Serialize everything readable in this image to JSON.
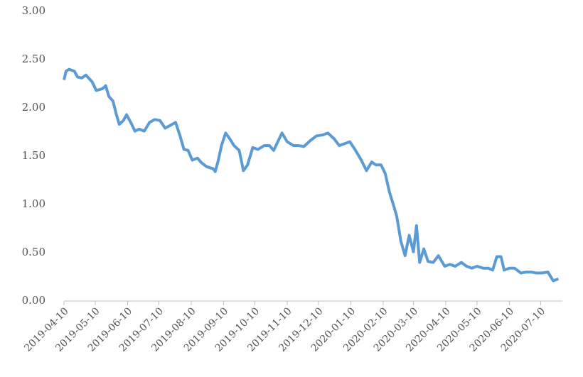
{
  "chart_data": {
    "type": "line",
    "x": [
      "2019-04-10",
      "2019-04-12",
      "2019-04-15",
      "2019-04-20",
      "2019-04-23",
      "2019-04-27",
      "2019-05-01",
      "2019-05-07",
      "2019-05-11",
      "2019-05-17",
      "2019-05-20",
      "2019-05-23",
      "2019-05-27",
      "2019-05-30",
      "2019-06-02",
      "2019-06-06",
      "2019-06-09",
      "2019-06-13",
      "2019-06-17",
      "2019-06-21",
      "2019-06-26",
      "2019-07-01",
      "2019-07-06",
      "2019-07-11",
      "2019-07-16",
      "2019-07-21",
      "2019-07-26",
      "2019-07-30",
      "2019-08-03",
      "2019-08-07",
      "2019-08-11",
      "2019-08-16",
      "2019-08-20",
      "2019-08-25",
      "2019-08-31",
      "2019-09-02",
      "2019-09-05",
      "2019-09-08",
      "2019-09-12",
      "2019-09-16",
      "2019-09-20",
      "2019-09-25",
      "2019-09-29",
      "2019-10-03",
      "2019-10-08",
      "2019-10-13",
      "2019-10-19",
      "2019-10-24",
      "2019-10-28",
      "2019-11-01",
      "2019-11-05",
      "2019-11-10",
      "2019-11-16",
      "2019-11-21",
      "2019-11-26",
      "2019-12-02",
      "2019-12-08",
      "2019-12-14",
      "2019-12-19",
      "2019-12-25",
      "2019-12-30",
      "2020-01-04",
      "2020-01-09",
      "2020-01-14",
      "2020-01-20",
      "2020-01-25",
      "2020-01-30",
      "2020-02-03",
      "2020-02-08",
      "2020-02-12",
      "2020-02-16",
      "2020-02-20",
      "2020-02-23",
      "2020-02-27",
      "2020-03-02",
      "2020-03-06",
      "2020-03-10",
      "2020-03-13",
      "2020-03-16",
      "2020-03-20",
      "2020-03-24",
      "2020-03-29",
      "2020-04-03",
      "2020-04-09",
      "2020-04-14",
      "2020-04-19",
      "2020-04-25",
      "2020-04-30",
      "2020-05-05",
      "2020-05-10",
      "2020-05-16",
      "2020-05-21",
      "2020-05-25",
      "2020-05-29",
      "2020-06-02",
      "2020-06-05",
      "2020-06-10",
      "2020-06-15",
      "2020-06-21",
      "2020-06-26",
      "2020-07-01",
      "2020-07-06",
      "2020-07-11",
      "2020-07-17",
      "2020-07-22",
      "2020-07-27"
    ],
    "series": [
      {
        "name": "value",
        "color": "#5b9bd5",
        "values": [
          2.29,
          2.38,
          2.4,
          2.38,
          2.32,
          2.31,
          2.34,
          2.27,
          2.18,
          2.2,
          2.23,
          2.12,
          2.07,
          1.94,
          1.83,
          1.87,
          1.93,
          1.85,
          1.76,
          1.78,
          1.76,
          1.85,
          1.88,
          1.87,
          1.79,
          1.82,
          1.85,
          1.72,
          1.57,
          1.56,
          1.46,
          1.48,
          1.43,
          1.39,
          1.37,
          1.34,
          1.46,
          1.61,
          1.74,
          1.68,
          1.61,
          1.56,
          1.35,
          1.41,
          1.59,
          1.57,
          1.61,
          1.61,
          1.56,
          1.65,
          1.74,
          1.65,
          1.61,
          1.61,
          1.6,
          1.66,
          1.71,
          1.72,
          1.74,
          1.68,
          1.61,
          1.63,
          1.65,
          1.57,
          1.46,
          1.35,
          1.44,
          1.41,
          1.41,
          1.32,
          1.13,
          0.99,
          0.88,
          0.62,
          0.47,
          0.68,
          0.51,
          0.78,
          0.4,
          0.54,
          0.41,
          0.4,
          0.47,
          0.36,
          0.38,
          0.36,
          0.4,
          0.36,
          0.34,
          0.36,
          0.34,
          0.34,
          0.32,
          0.46,
          0.46,
          0.32,
          0.34,
          0.34,
          0.29,
          0.3,
          0.3,
          0.29,
          0.29,
          0.3,
          0.21,
          0.23
        ]
      }
    ],
    "xlim": [
      "2019-04-10",
      "2020-07-31"
    ],
    "xticks": [
      "2019-04-10",
      "2019-05-10",
      "2019-06-10",
      "2019-07-10",
      "2019-08-10",
      "2019-09-10",
      "2019-10-10",
      "2019-11-10",
      "2019-12-10",
      "2020-01-10",
      "2020-02-10",
      "2020-03-10",
      "2020-04-10",
      "2020-05-10",
      "2020-06-10",
      "2020-07-10"
    ],
    "ylim": [
      0,
      3
    ],
    "yticks": [
      {
        "value": 0,
        "label": "0.00"
      },
      {
        "value": 0.5,
        "label": "0.50"
      },
      {
        "value": 1,
        "label": "1.00"
      },
      {
        "value": 1.5,
        "label": "1.50"
      },
      {
        "value": 2,
        "label": "2.00"
      },
      {
        "value": 2.5,
        "label": "2.50"
      },
      {
        "value": 3,
        "label": "3.00"
      }
    ],
    "grid": false
  }
}
